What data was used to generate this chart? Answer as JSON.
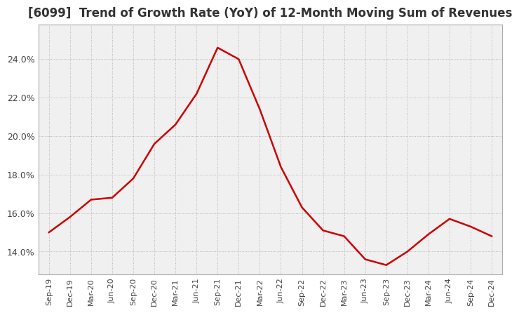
{
  "title": "[6099]  Trend of Growth Rate (YoY) of 12-Month Moving Sum of Revenues",
  "title_fontsize": 12,
  "line_color": "#cc0000",
  "line_width": 1.8,
  "background_color": "#ffffff",
  "plot_bg_color": "#f0f0f0",
  "grid_color": "#aaaaaa",
  "grid_style": "dotted",
  "tick_label_color": "#444444",
  "ylim": [
    0.128,
    0.258
  ],
  "yticks": [
    0.14,
    0.16,
    0.18,
    0.2,
    0.22,
    0.24
  ],
  "ytick_labels": [
    "14.0%",
    "16.0%",
    "18.0%",
    "20.0%",
    "22.0%",
    "24.0%"
  ],
  "x_labels": [
    "Sep-19",
    "Dec-19",
    "Mar-20",
    "Jun-20",
    "Sep-20",
    "Dec-20",
    "Mar-21",
    "Jun-21",
    "Sep-21",
    "Dec-21",
    "Mar-22",
    "Jun-22",
    "Sep-22",
    "Dec-22",
    "Mar-23",
    "Jun-23",
    "Sep-23",
    "Dec-23",
    "Mar-24",
    "Jun-24",
    "Sep-24",
    "Dec-24"
  ],
  "y_values": [
    0.15,
    0.158,
    0.167,
    0.168,
    0.178,
    0.196,
    0.206,
    0.222,
    0.246,
    0.24,
    0.214,
    0.184,
    0.163,
    0.151,
    0.148,
    0.136,
    0.133,
    0.14,
    0.149,
    0.157,
    0.153,
    0.148
  ]
}
